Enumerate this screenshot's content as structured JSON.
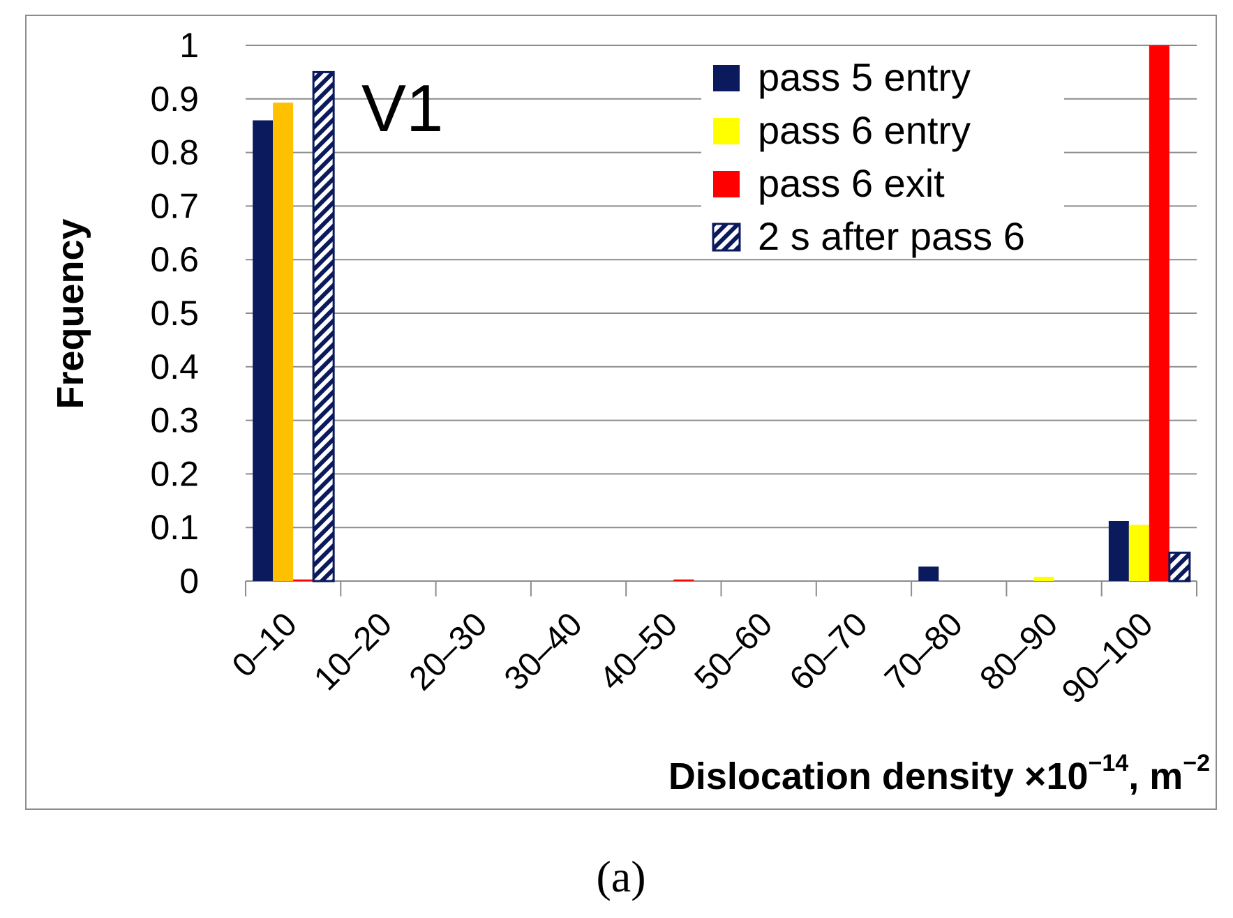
{
  "chart_data": {
    "type": "bar",
    "categories": [
      "0–10",
      "10–20",
      "20–30",
      "30–40",
      "40–50",
      "50–60",
      "60–70",
      "70–80",
      "80–90",
      "90–100"
    ],
    "series": [
      {
        "name": "pass 5 entry",
        "color": "#0a1a5c",
        "pattern": "solid",
        "values": [
          0.86,
          0,
          0,
          0,
          0,
          0,
          0,
          0.027,
          0,
          0.112
        ]
      },
      {
        "name": "pass 6 entry",
        "color": "#ffc000",
        "color_secondary": "#ffff00",
        "pattern": "solid",
        "values": [
          0.893,
          0,
          0,
          0,
          0,
          0,
          0,
          0,
          0.008,
          0.105
        ]
      },
      {
        "name": "pass 6 exit",
        "color": "#ff0000",
        "pattern": "solid",
        "values": [
          0.003,
          0,
          0,
          0,
          0.003,
          0,
          0,
          0,
          0,
          1.0
        ]
      },
      {
        "name": "2 s after pass 6",
        "color": "#0a1a5c",
        "pattern": "hatched",
        "values": [
          0.95,
          0,
          0,
          0,
          0,
          0,
          0,
          0,
          0,
          0.053
        ]
      }
    ],
    "ylim": [
      0,
      1
    ],
    "yticks": [
      "0",
      "0.1",
      "0.2",
      "0.3",
      "0.4",
      "0.5",
      "0.6",
      "0.7",
      "0.8",
      "0.9",
      "1"
    ],
    "ylabel": "Frequency",
    "xlabel": {
      "main": "Dislocation density ×10",
      "exponent": "−14",
      "unit": ", m",
      "unit_exponent": "−2"
    },
    "annotation": "V1",
    "legend_position": "top-right",
    "grid": true
  },
  "caption": "(a)"
}
